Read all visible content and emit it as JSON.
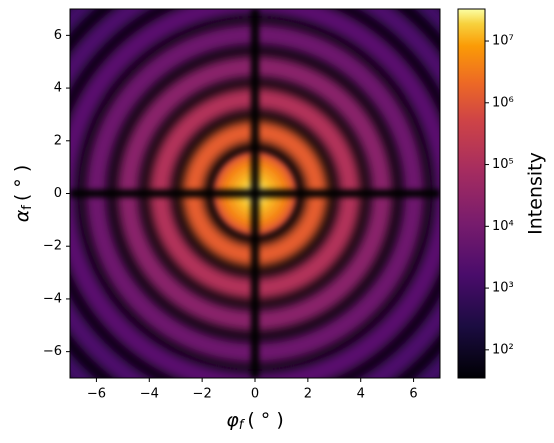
{
  "chart_data": {
    "type": "heatmap",
    "xlabel": {
      "symbol": "φ",
      "sub": "f",
      "unit": "( ° )"
    },
    "ylabel": {
      "symbol": "α",
      "sub": "f",
      "unit": "( ° )"
    },
    "xlim": [
      -7,
      7
    ],
    "ylim": [
      -7,
      7
    ],
    "xticks": [
      {
        "value": -6,
        "label": "−6"
      },
      {
        "value": -4,
        "label": "−4"
      },
      {
        "value": -2,
        "label": "−2"
      },
      0,
      2,
      4,
      6
    ],
    "yticks": [
      {
        "value": -6,
        "label": "−6"
      },
      {
        "value": -4,
        "label": "−4"
      },
      {
        "value": -2,
        "label": "−2"
      },
      0,
      2,
      4,
      6
    ],
    "colorbar": {
      "label": "Intensity",
      "scale": "log",
      "colormap": "inferno",
      "clim": [
        35,
        33000000
      ],
      "ticks": [
        {
          "value": 100,
          "label": "10²"
        },
        {
          "value": 1000,
          "label": "10³"
        },
        {
          "value": 10000,
          "label": "10⁴"
        },
        {
          "value": 100000,
          "label": "10⁵"
        },
        {
          "value": 1000000,
          "label": "10⁶"
        },
        {
          "value": 10000000,
          "label": "10⁷"
        }
      ]
    }
  }
}
